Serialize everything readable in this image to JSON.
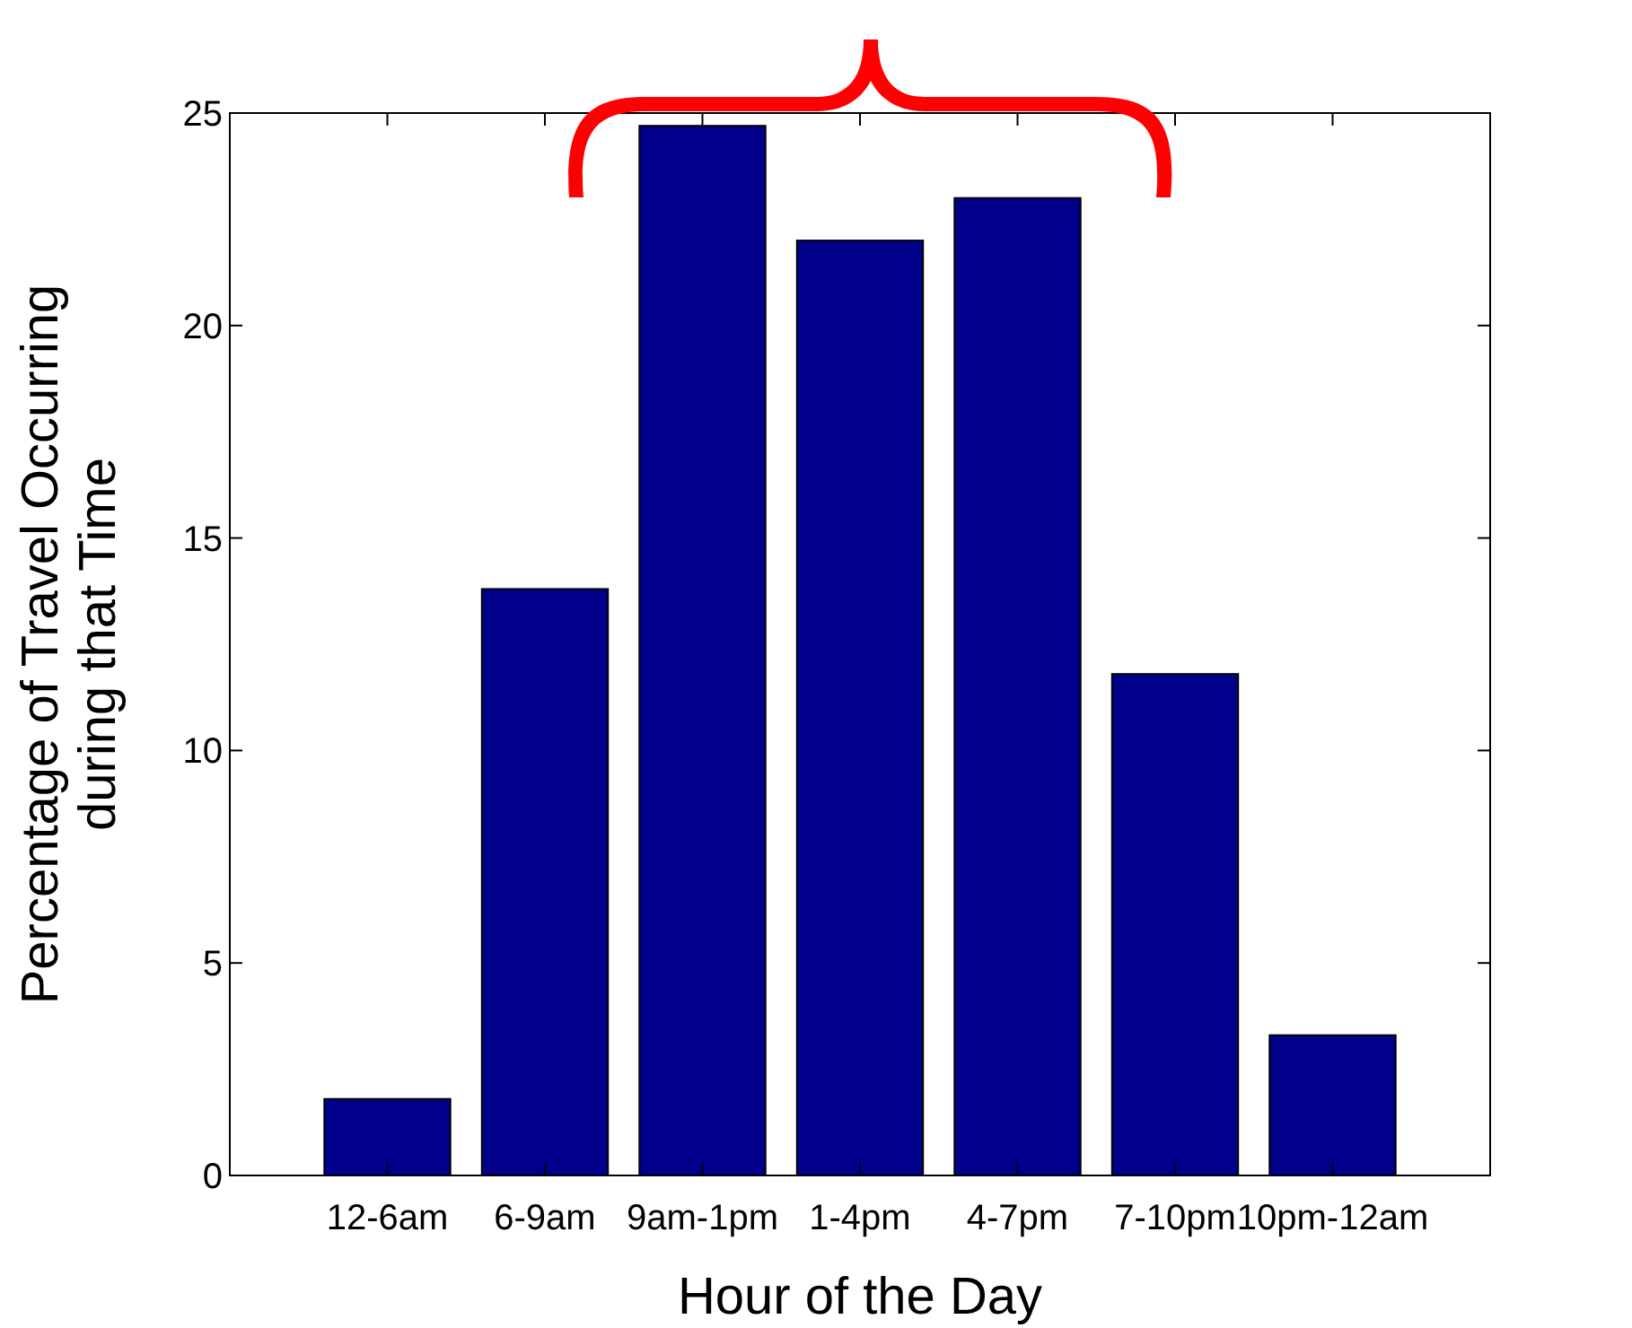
{
  "chart_data": {
    "type": "bar",
    "xlabel": "Hour of the Day",
    "ylabel": "Percentage of Travel Occurring\nduring that Time",
    "categories": [
      "12-6am",
      "6-9am",
      "9am-1pm",
      "1-4pm",
      "4-7pm",
      "7-10pm",
      "10pm-12am"
    ],
    "values": [
      1.8,
      13.8,
      24.7,
      22.0,
      23.0,
      11.8,
      3.3
    ],
    "color": "#00008b",
    "ylim": [
      0,
      25
    ],
    "yticks": [
      0,
      5,
      10,
      15,
      20,
      25
    ],
    "grid": false
  }
}
